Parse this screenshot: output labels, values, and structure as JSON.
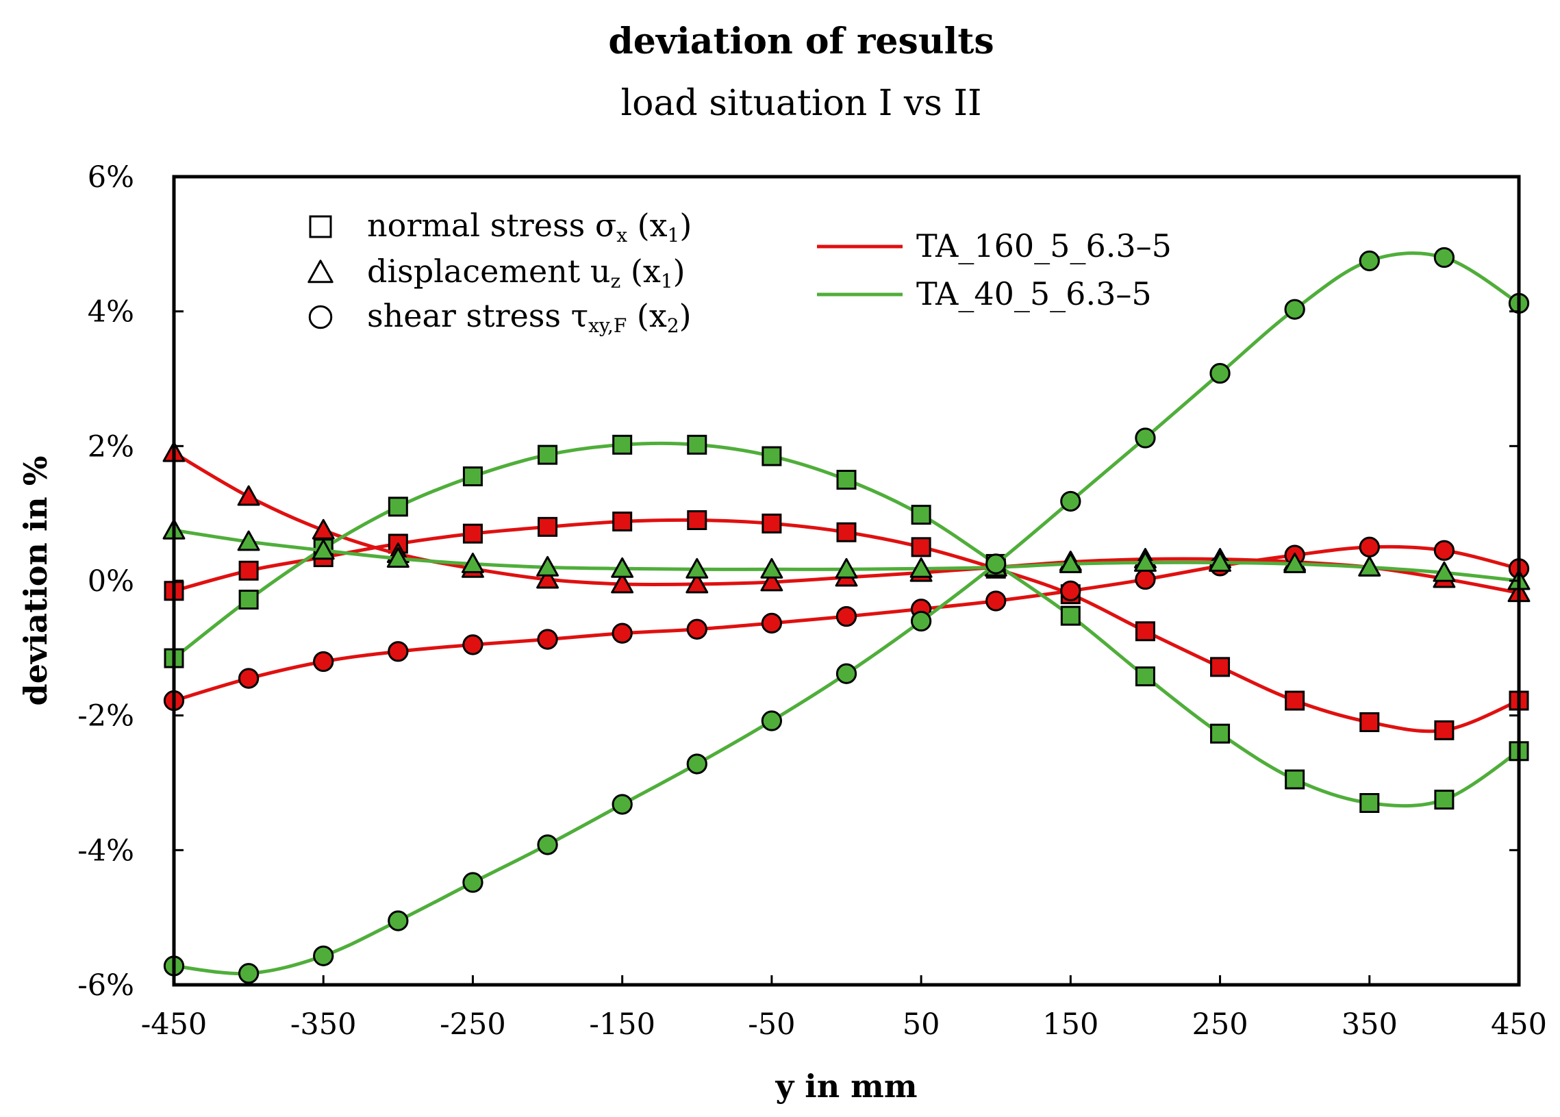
{
  "chart_data": {
    "type": "line",
    "title": "deviation of results",
    "subtitle": "load situation I vs II",
    "xlabel": "y in mm",
    "ylabel": "deviation in %",
    "xlim": [
      -450,
      450
    ],
    "ylim": [
      -6,
      6
    ],
    "x_ticks": [
      -450,
      -350,
      -250,
      -150,
      -50,
      50,
      150,
      250,
      350,
      450
    ],
    "x_tick_labels": [
      "-450",
      "-350",
      "-250",
      "-150",
      "-50",
      "50",
      "150",
      "250",
      "350",
      "450"
    ],
    "y_ticks": [
      -6,
      -4,
      -2,
      0,
      2,
      4,
      6
    ],
    "y_tick_labels": [
      "-6%",
      "-4%",
      "-2%",
      "0%",
      "2%",
      "4%",
      "6%"
    ],
    "grid": false,
    "x": [
      -450,
      -400,
      -350,
      -300,
      -250,
      -200,
      -150,
      -100,
      -50,
      0,
      50,
      100,
      150,
      200,
      250,
      300,
      350,
      400,
      450
    ],
    "colors": {
      "TA_160_5_6.3-5": "#e01010",
      "TA_40_5_6.3-5": "#4fae3a"
    },
    "marker_legend": [
      {
        "marker": "square",
        "label": "normal stress σ",
        "sub": "x",
        "suffix": " (x",
        "suffix_sub": "1",
        "close": ")"
      },
      {
        "marker": "triangle",
        "label": "displacement u",
        "sub": "z",
        "suffix": " (x",
        "suffix_sub": "1",
        "close": ")"
      },
      {
        "marker": "circle",
        "label": "shear stress τ",
        "sub": "xy,F",
        "suffix": " (x",
        "suffix_sub": "2",
        "close": ")"
      }
    ],
    "line_legend": [
      {
        "name": "TA_160_5_6.3–5",
        "color": "#e01010"
      },
      {
        "name": "TA_40_5_6.3–5",
        "color": "#4fae3a"
      }
    ],
    "series": [
      {
        "name": "TA_160_5_6.3–5",
        "marker": "square",
        "color": "#e01010",
        "values": [
          -0.15,
          0.15,
          0.35,
          0.55,
          0.7,
          0.8,
          0.88,
          0.9,
          0.85,
          0.72,
          0.5,
          0.18,
          -0.2,
          -0.75,
          -1.28,
          -1.78,
          -2.1,
          -2.22,
          -1.78
        ]
      },
      {
        "name": "TA_160_5_6.3–5",
        "marker": "triangle",
        "color": "#e01010",
        "values": [
          1.9,
          1.25,
          0.75,
          0.4,
          0.18,
          0.02,
          -0.05,
          -0.05,
          -0.02,
          0.05,
          0.12,
          0.2,
          0.28,
          0.32,
          0.32,
          0.28,
          0.2,
          0.03,
          -0.18
        ]
      },
      {
        "name": "TA_160_5_6.3–5",
        "marker": "circle",
        "color": "#e01010",
        "values": [
          -1.78,
          -1.45,
          -1.2,
          -1.05,
          -0.95,
          -0.87,
          -0.78,
          -0.72,
          -0.63,
          -0.53,
          -0.42,
          -0.3,
          -0.15,
          0.02,
          0.22,
          0.38,
          0.5,
          0.45,
          0.18
        ]
      },
      {
        "name": "TA_40_5_6.3–5",
        "marker": "square",
        "color": "#4fae3a",
        "values": [
          -1.15,
          -0.28,
          0.48,
          1.1,
          1.55,
          1.87,
          2.02,
          2.02,
          1.85,
          1.5,
          0.98,
          0.25,
          -0.52,
          -1.42,
          -2.27,
          -2.95,
          -3.3,
          -3.25,
          -2.53
        ]
      },
      {
        "name": "TA_40_5_6.3–5",
        "marker": "triangle",
        "color": "#4fae3a",
        "values": [
          0.75,
          0.58,
          0.45,
          0.33,
          0.25,
          0.2,
          0.18,
          0.17,
          0.17,
          0.17,
          0.18,
          0.2,
          0.25,
          0.27,
          0.27,
          0.25,
          0.2,
          0.12,
          0.0
        ]
      },
      {
        "name": "TA_40_5_6.3–5",
        "marker": "circle",
        "color": "#4fae3a",
        "values": [
          -5.72,
          -5.83,
          -5.57,
          -5.05,
          -4.48,
          -3.92,
          -3.32,
          -2.72,
          -2.08,
          -1.38,
          -0.6,
          0.25,
          1.18,
          2.12,
          3.08,
          4.03,
          4.75,
          4.8,
          4.12
        ]
      }
    ]
  }
}
